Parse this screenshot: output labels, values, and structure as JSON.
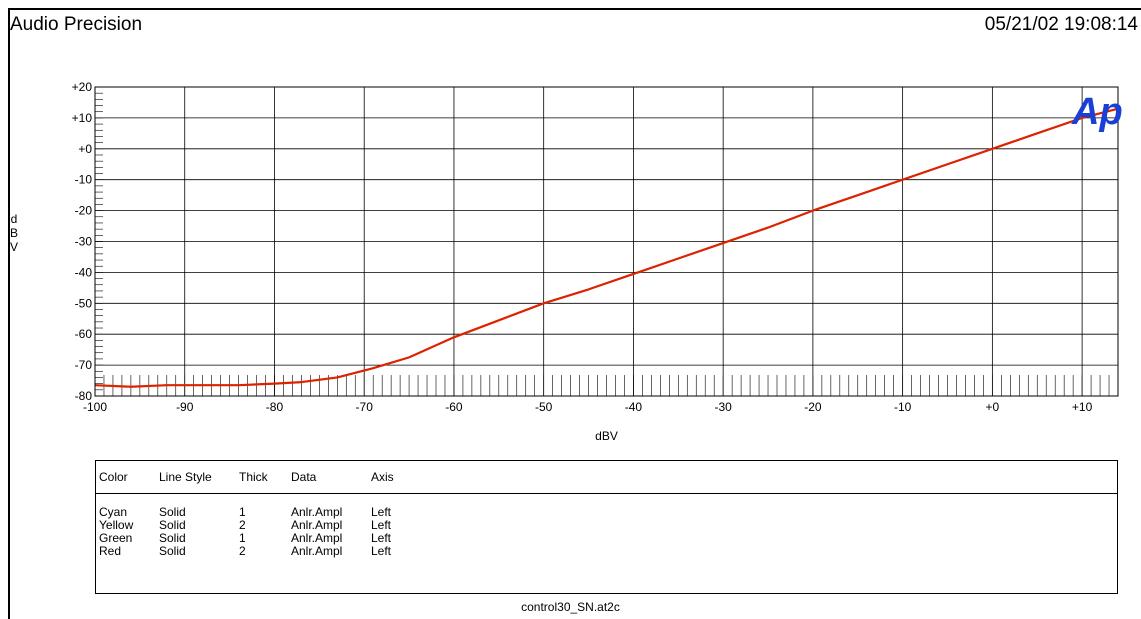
{
  "header": {
    "app_title": "Audio Precision",
    "timestamp": "05/21/02 19:08:14"
  },
  "chart_data": {
    "type": "line",
    "xlabel": "dBV",
    "ylabel": "dBV",
    "xlim": [
      -100,
      14
    ],
    "ylim": [
      -80,
      20
    ],
    "x_ticks": [
      "-100",
      "-90",
      "-80",
      "-70",
      "-60",
      "-50",
      "-40",
      "-30",
      "-20",
      "-10",
      "+0",
      "+10"
    ],
    "y_ticks": [
      "+20",
      "+10",
      "+0",
      "-10",
      "-20",
      "-30",
      "-40",
      "-50",
      "-60",
      "-70",
      "-80"
    ],
    "grid": true,
    "logo": "Ap",
    "series": [
      {
        "color": "#dd2200",
        "x": [
          -100,
          -96,
          -92,
          -88,
          -84,
          -80,
          -77,
          -73,
          -69,
          -65,
          -60,
          -55,
          -50,
          -45,
          -40,
          -35,
          -30,
          -25,
          -20,
          -15,
          -10,
          -5,
          0,
          5,
          10,
          14
        ],
        "y": [
          -76.5,
          -77,
          -76.5,
          -76.5,
          -76.5,
          -76,
          -75.5,
          -74,
          -71,
          -67.5,
          -61,
          -55.5,
          -50,
          -45.5,
          -40.5,
          -35.5,
          -30.5,
          -25.5,
          -20,
          -15,
          -10,
          -5,
          0,
          5,
          10,
          13
        ]
      }
    ]
  },
  "legend": {
    "headers": [
      "Color",
      "Line Style",
      "Thick",
      "Data",
      "Axis"
    ],
    "rows": [
      [
        "Cyan",
        "Solid",
        "1",
        "Anlr.Ampl",
        "Left"
      ],
      [
        "Yellow",
        "Solid",
        "2",
        "Anlr.Ampl",
        "Left"
      ],
      [
        "Green",
        "Solid",
        "1",
        "Anlr.Ampl",
        "Left"
      ],
      [
        "Red",
        "Solid",
        "2",
        "Anlr.Ampl",
        "Left"
      ]
    ]
  },
  "footer": {
    "filename": "control30_SN.at2c"
  }
}
